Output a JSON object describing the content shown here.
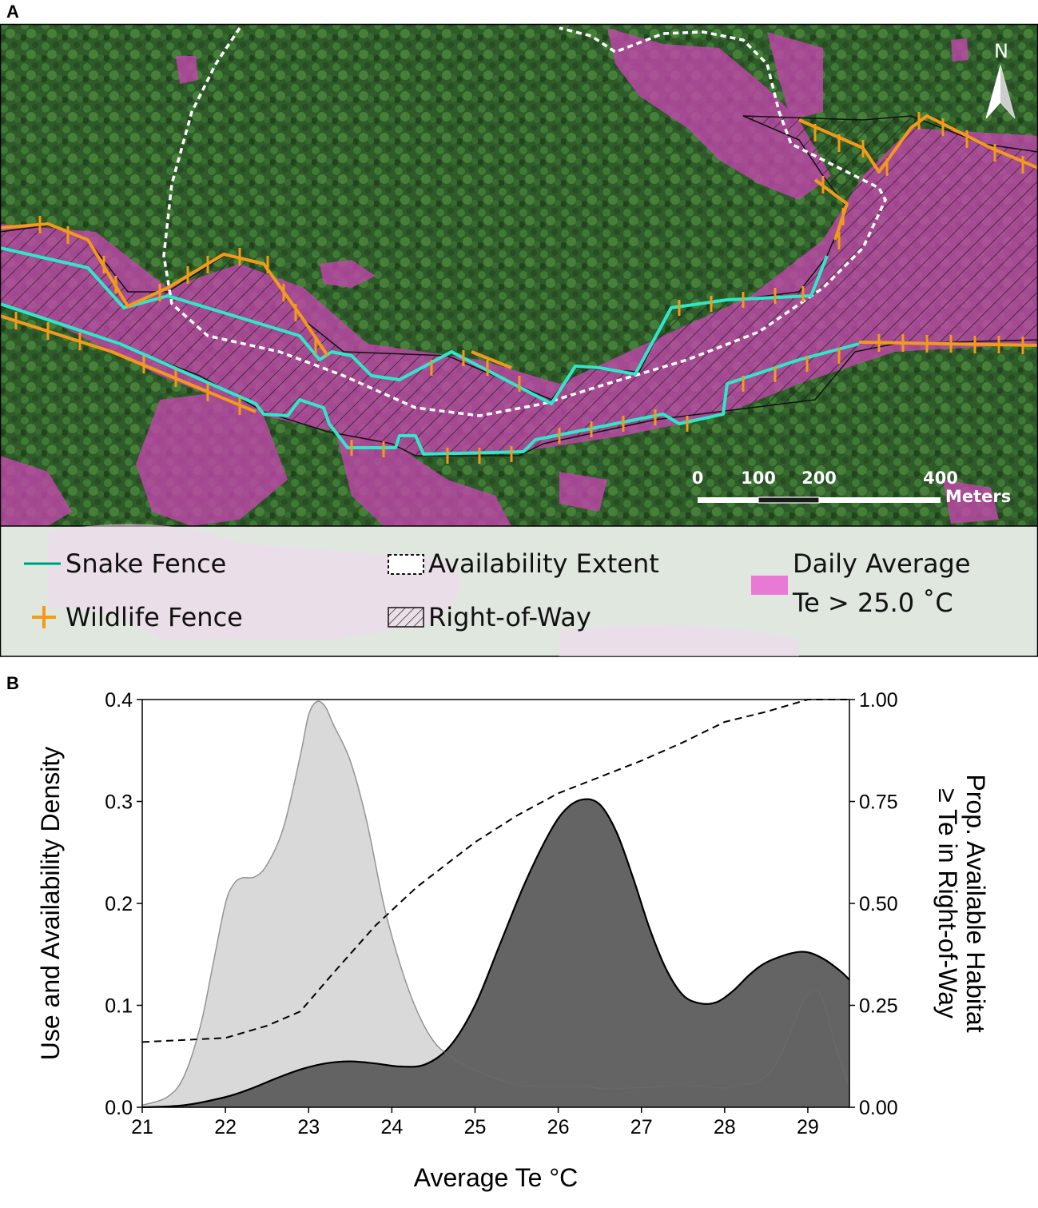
{
  "panel_a": {
    "letter": "A",
    "north_label": "N",
    "scale": {
      "ticks": [
        "0",
        "100",
        "200",
        "400"
      ],
      "unit": "Meters"
    },
    "legend": {
      "snake_fence": "Snake Fence",
      "wildlife_fence": "Wildlife Fence",
      "availability_extent": "Availability Extent",
      "right_of_way": "Right-of-Way",
      "te_line1": "Daily Average",
      "te_line2": "Te > 25.0 ˚C"
    },
    "colors": {
      "forest": "#2f5a2a",
      "hot_habitat": "#c545b0",
      "snake_fence": "#2ee8c8",
      "wildlife_fence": "#f29a1a",
      "availability_extent": "#ffffff",
      "legend_bg": "#dfe7df"
    }
  },
  "panel_b": {
    "letter": "B",
    "chart_data": {
      "type": "area",
      "xlabel": "Average Te °C",
      "ylabel": "Use and Availability Density",
      "ylabel_right_line1": "Prop. Available Habitat",
      "ylabel_right_line2": "≥ Te in Right-of-Way",
      "xlim": [
        21,
        29.5
      ],
      "ylim": [
        0,
        0.4
      ],
      "ylim_right": [
        0,
        1
      ],
      "x_ticks": [
        "21",
        "22",
        "23",
        "24",
        "25",
        "26",
        "27",
        "28",
        "29"
      ],
      "y_ticks": [
        "0.0",
        "0.1",
        "0.2",
        "0.3",
        "0.4"
      ],
      "y_ticks_right": [
        "0.00",
        "0.25",
        "0.50",
        "0.75",
        "1.00"
      ],
      "series": [
        {
          "style": "light-gray-filled",
          "color": "#d9d9d9",
          "stroke": "#b8b8b8",
          "x": [
            21.0,
            21.3,
            21.5,
            21.7,
            21.85,
            22.0,
            22.1,
            22.2,
            22.35,
            22.5,
            22.7,
            22.9,
            23.0,
            23.1,
            23.2,
            23.3,
            23.5,
            23.7,
            23.9,
            24.1,
            24.3,
            24.5,
            24.7,
            24.9,
            25.1,
            25.3,
            25.5,
            25.8,
            26.0,
            26.3,
            26.6,
            26.9,
            27.2,
            27.5,
            27.8,
            28.0,
            28.2,
            28.4,
            28.6,
            28.8,
            28.95,
            29.1,
            29.2,
            29.35,
            29.5
          ],
          "y": [
            0.002,
            0.01,
            0.03,
            0.08,
            0.14,
            0.2,
            0.219,
            0.225,
            0.226,
            0.238,
            0.275,
            0.345,
            0.385,
            0.398,
            0.393,
            0.375,
            0.34,
            0.28,
            0.2,
            0.14,
            0.095,
            0.065,
            0.05,
            0.04,
            0.033,
            0.027,
            0.022,
            0.02,
            0.02,
            0.02,
            0.018,
            0.019,
            0.02,
            0.022,
            0.02,
            0.019,
            0.022,
            0.025,
            0.04,
            0.075,
            0.105,
            0.115,
            0.1,
            0.055,
            0.02
          ]
        },
        {
          "style": "dark-gray-filled",
          "color": "#5f5f5f",
          "stroke": "#000000",
          "x": [
            21.0,
            21.5,
            22.0,
            22.3,
            22.6,
            22.9,
            23.2,
            23.5,
            23.8,
            24.1,
            24.4,
            24.7,
            25.0,
            25.3,
            25.6,
            25.9,
            26.1,
            26.3,
            26.5,
            26.7,
            26.9,
            27.1,
            27.3,
            27.5,
            27.7,
            27.9,
            28.1,
            28.3,
            28.5,
            28.8,
            29.0,
            29.2,
            29.4,
            29.5
          ],
          "y": [
            0.0,
            0.002,
            0.01,
            0.018,
            0.028,
            0.037,
            0.043,
            0.045,
            0.043,
            0.04,
            0.042,
            0.06,
            0.1,
            0.16,
            0.22,
            0.27,
            0.293,
            0.302,
            0.297,
            0.27,
            0.225,
            0.175,
            0.135,
            0.11,
            0.102,
            0.103,
            0.114,
            0.13,
            0.142,
            0.151,
            0.152,
            0.145,
            0.133,
            0.125
          ]
        },
        {
          "style": "dashed-line",
          "axis": "right",
          "color": "#000000",
          "x": [
            21.0,
            22.0,
            22.5,
            22.9,
            23.3,
            23.8,
            24.3,
            25.0,
            25.5,
            26.0,
            26.5,
            27.0,
            27.5,
            28.0,
            28.5,
            29.0,
            29.5
          ],
          "y": [
            0.16,
            0.17,
            0.2,
            0.235,
            0.33,
            0.445,
            0.54,
            0.65,
            0.715,
            0.77,
            0.81,
            0.85,
            0.895,
            0.945,
            0.97,
            1.0,
            1.0
          ]
        }
      ]
    }
  }
}
